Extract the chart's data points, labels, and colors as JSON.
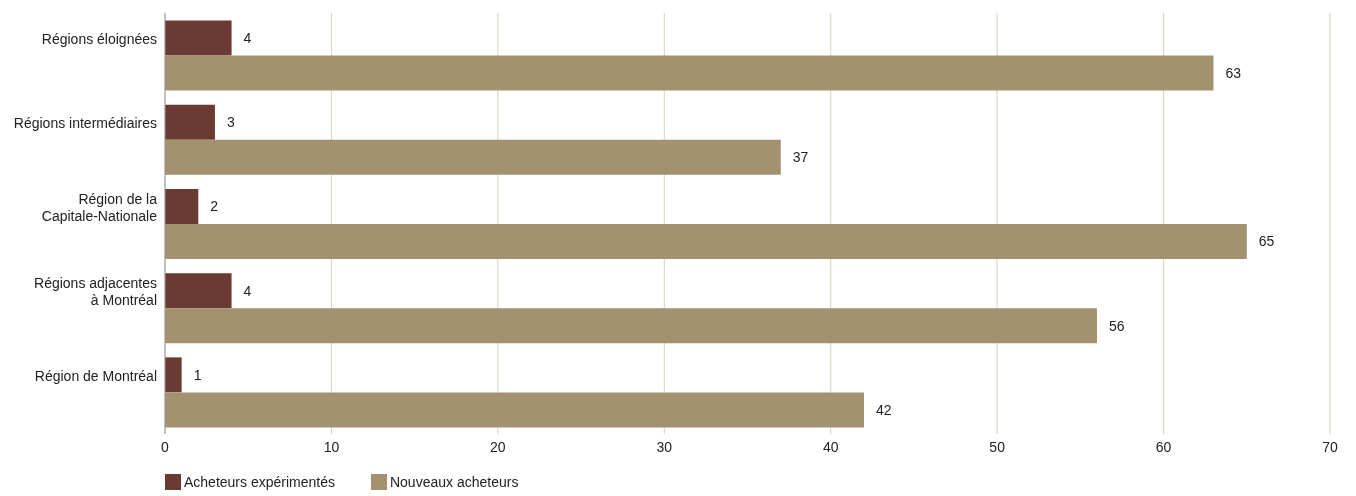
{
  "chart_data": {
    "type": "bar",
    "orientation": "horizontal",
    "categories": [
      "Régions éloignées",
      "Régions intermédiaires",
      "Région de la Capitale-Nationale",
      "Régions adjacentes à Montréal",
      "Région de Montréal"
    ],
    "series": [
      {
        "name": "Acheteurs expérimentés",
        "color": "#6b3a32",
        "values": [
          4,
          3,
          2,
          4,
          1
        ]
      },
      {
        "name": "Nouveaux acheteurs",
        "color": "#a39170",
        "values": [
          63,
          37,
          65,
          56,
          42
        ]
      }
    ],
    "xlim": [
      0,
      70
    ],
    "xticks": [
      0,
      10,
      20,
      30,
      40,
      50,
      60,
      70
    ],
    "grid": "x",
    "legend": "bottom",
    "data_labels": true
  }
}
